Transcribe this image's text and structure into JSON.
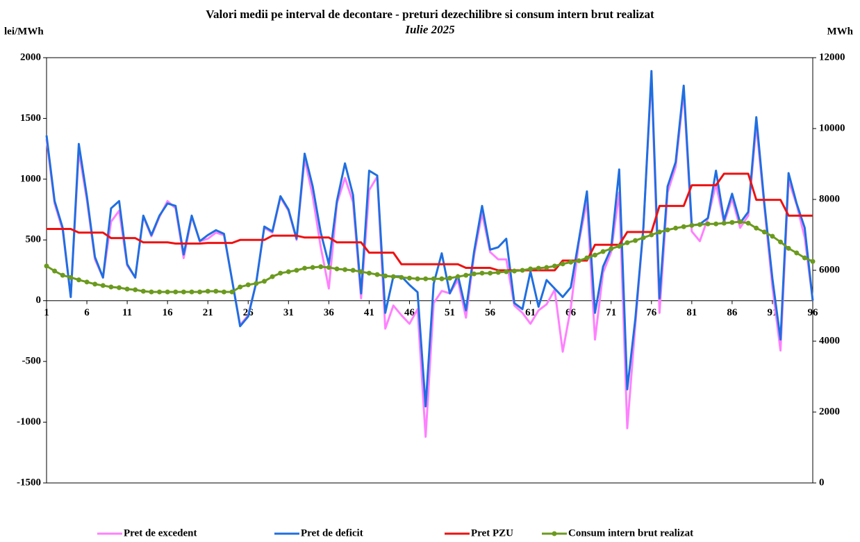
{
  "chart_data": {
    "type": "line",
    "title": "Valori medii pe interval de decontare - preturi dezechilibre si consum intern brut realizat",
    "subtitle": "Iulie 2025",
    "y_label": "lei/MWh",
    "y2_label": "MWh",
    "x": [
      1,
      2,
      3,
      4,
      5,
      6,
      7,
      8,
      9,
      10,
      11,
      12,
      13,
      14,
      15,
      16,
      17,
      18,
      19,
      20,
      21,
      22,
      23,
      24,
      25,
      26,
      27,
      28,
      29,
      30,
      31,
      32,
      33,
      34,
      35,
      36,
      37,
      38,
      39,
      40,
      41,
      42,
      43,
      44,
      45,
      46,
      47,
      48,
      49,
      50,
      51,
      52,
      53,
      54,
      55,
      56,
      57,
      58,
      59,
      60,
      61,
      62,
      63,
      64,
      65,
      66,
      67,
      68,
      69,
      70,
      71,
      72,
      73,
      74,
      75,
      76,
      77,
      78,
      79,
      80,
      81,
      82,
      83,
      84,
      85,
      86,
      87,
      88,
      89,
      90,
      91,
      92,
      93,
      94,
      95,
      96
    ],
    "xlim": [
      1,
      96
    ],
    "xticks": [
      1,
      6,
      11,
      16,
      21,
      26,
      31,
      36,
      41,
      46,
      51,
      56,
      61,
      66,
      71,
      76,
      81,
      86,
      91,
      96
    ],
    "ylim": [
      -1500,
      2000
    ],
    "yticks": [
      -1500,
      -1000,
      -500,
      0,
      500,
      1000,
      1500,
      2000
    ],
    "y2lim": [
      0,
      12000
    ],
    "y2ticks": [
      0,
      2000,
      4000,
      6000,
      8000,
      10000,
      12000
    ],
    "grid": false,
    "legend": "bottom",
    "series": [
      {
        "name": "Pret de excedent",
        "color": "#ff80ff",
        "values": [
          1330,
          800,
          580,
          30,
          1230,
          830,
          340,
          190,
          650,
          740,
          290,
          190,
          690,
          530,
          690,
          820,
          760,
          350,
          690,
          490,
          510,
          560,
          540,
          170,
          -200,
          -120,
          150,
          600,
          560,
          850,
          740,
          500,
          1170,
          860,
          440,
          100,
          800,
          1010,
          810,
          20,
          910,
          1020,
          -230,
          -40,
          -120,
          -190,
          -70,
          -1120,
          -20,
          80,
          60,
          170,
          -140,
          370,
          720,
          400,
          340,
          340,
          -40,
          -100,
          -190,
          -80,
          -30,
          90,
          -420,
          -60,
          480,
          820,
          -320,
          230,
          400,
          890,
          -1050,
          -200,
          600,
          1850,
          -100,
          890,
          1100,
          1720,
          570,
          490,
          680,
          960,
          640,
          840,
          600,
          700,
          1450,
          770,
          110,
          -410,
          990,
          790,
          520,
          0
        ]
      },
      {
        "name": "Pret de deficit",
        "color": "#1f6fe0",
        "values": [
          1360,
          820,
          600,
          30,
          1290,
          860,
          360,
          190,
          760,
          820,
          300,
          190,
          700,
          540,
          700,
          800,
          780,
          380,
          700,
          490,
          540,
          580,
          550,
          170,
          -210,
          -130,
          150,
          610,
          570,
          860,
          750,
          510,
          1210,
          940,
          560,
          300,
          820,
          1130,
          870,
          60,
          1070,
          1030,
          -100,
          200,
          200,
          130,
          70,
          -870,
          140,
          390,
          60,
          210,
          -80,
          400,
          780,
          420,
          440,
          510,
          -20,
          -70,
          240,
          -50,
          170,
          100,
          30,
          110,
          500,
          900,
          -100,
          280,
          430,
          1080,
          -730,
          -150,
          600,
          1890,
          20,
          940,
          1140,
          1770,
          620,
          630,
          680,
          1070,
          660,
          880,
          640,
          730,
          1510,
          800,
          180,
          -320,
          1050,
          800,
          600,
          0
        ]
      },
      {
        "name": "Pret PZU",
        "color": "#ee1111",
        "values": [
          590,
          590,
          590,
          590,
          560,
          560,
          560,
          560,
          515,
          515,
          515,
          515,
          480,
          480,
          480,
          480,
          470,
          470,
          470,
          470,
          475,
          475,
          475,
          475,
          500,
          500,
          500,
          500,
          535,
          535,
          535,
          535,
          520,
          520,
          520,
          520,
          480,
          480,
          480,
          480,
          395,
          395,
          395,
          395,
          300,
          300,
          300,
          300,
          300,
          300,
          300,
          300,
          270,
          270,
          270,
          270,
          250,
          250,
          250,
          250,
          250,
          250,
          250,
          250,
          330,
          330,
          330,
          330,
          460,
          460,
          460,
          460,
          565,
          565,
          565,
          565,
          780,
          780,
          780,
          780,
          950,
          950,
          950,
          950,
          1045,
          1045,
          1045,
          1045,
          830,
          830,
          830,
          830,
          700,
          700,
          700,
          700
        ]
      },
      {
        "name": "Consum intern brut realizat",
        "color": "#6b9a1e",
        "axis": "y2",
        "marker": "circle",
        "values": [
          6120,
          5980,
          5860,
          5800,
          5730,
          5670,
          5610,
          5570,
          5530,
          5510,
          5470,
          5450,
          5410,
          5390,
          5390,
          5390,
          5390,
          5390,
          5390,
          5390,
          5410,
          5410,
          5390,
          5390,
          5530,
          5590,
          5630,
          5690,
          5820,
          5920,
          5960,
          6000,
          6060,
          6080,
          6100,
          6080,
          6040,
          6020,
          6000,
          5960,
          5920,
          5880,
          5840,
          5820,
          5800,
          5780,
          5760,
          5760,
          5760,
          5760,
          5780,
          5820,
          5860,
          5900,
          5920,
          5920,
          5940,
          5960,
          5980,
          6000,
          6040,
          6060,
          6080,
          6120,
          6180,
          6230,
          6270,
          6350,
          6430,
          6530,
          6610,
          6680,
          6780,
          6840,
          6920,
          7000,
          7080,
          7140,
          7190,
          7230,
          7270,
          7290,
          7310,
          7310,
          7330,
          7350,
          7370,
          7330,
          7190,
          7080,
          6960,
          6800,
          6620,
          6490,
          6350,
          6250
        ]
      }
    ]
  }
}
